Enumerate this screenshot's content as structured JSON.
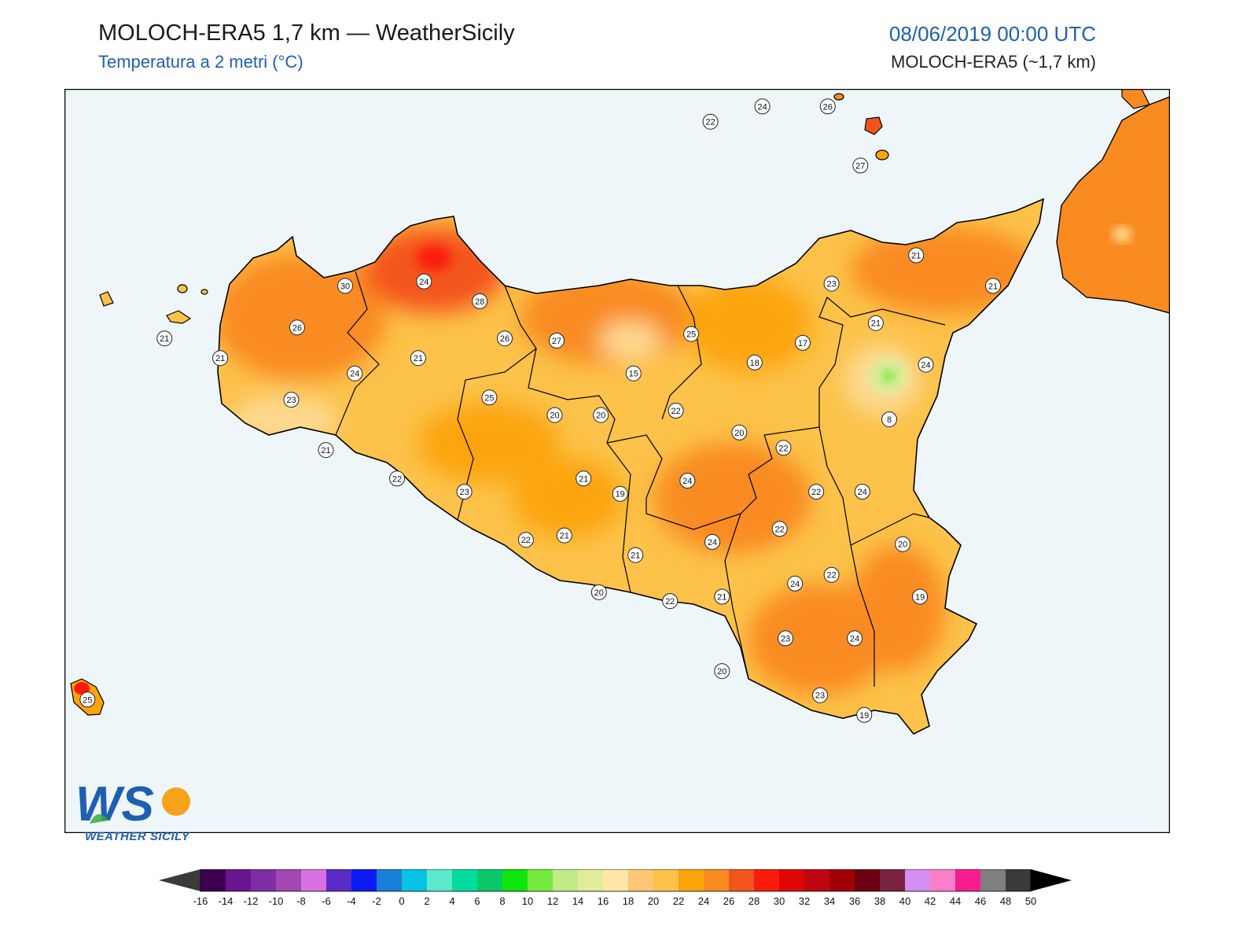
{
  "header": {
    "title": "MOLOCH-ERA5 1,7 km — WeatherSicily",
    "subtitle": "Temperatura a 2 metri (°C)",
    "datetime": "08/06/2019 00:00 UTC",
    "model": "MOLOCH-ERA5 (~1,7 km)"
  },
  "logo": {
    "letters": "WS",
    "text": "WEATHER SICILY"
  },
  "colors": {
    "sea": "#eef6fa",
    "land_base": "#fcc24a",
    "land_warm": "#f98b20",
    "land_hot": "#f4541c",
    "land_cool": "#fdd992",
    "coast": "#000000"
  },
  "colorbar": {
    "ticks": [
      "-16",
      "-14",
      "-12",
      "-10",
      "-8",
      "-6",
      "-4",
      "-2",
      "0",
      "2",
      "4",
      "6",
      "8",
      "10",
      "12",
      "14",
      "16",
      "18",
      "20",
      "22",
      "24",
      "26",
      "28",
      "30",
      "32",
      "34",
      "36",
      "38",
      "40",
      "42",
      "44",
      "46",
      "48",
      "50"
    ],
    "colors": [
      "#3d0050",
      "#6b1491",
      "#7e2fa3",
      "#a148b3",
      "#d970e2",
      "#5a2ac4",
      "#0b1cf5",
      "#1b7fd9",
      "#06c2e4",
      "#5ce8cd",
      "#04dc9e",
      "#0ac86a",
      "#0ee60a",
      "#76ea3c",
      "#bfec86",
      "#dfec9a",
      "#fde6a8",
      "#fdc773",
      "#fcc24a",
      "#fca40c",
      "#f98b20",
      "#f4541c",
      "#fb1b0a",
      "#e10606",
      "#c00612",
      "#a10006",
      "#6c0012",
      "#7a2340",
      "#d48ef2",
      "#fb7fc8",
      "#f71d91",
      "#7f7f7f",
      "#3a3a3a"
    ],
    "under_color": "#3a3a3a",
    "over_color": "#000000"
  },
  "stations": [
    {
      "label": "22",
      "lon": 14.06,
      "lat": 38.8
    },
    {
      "label": "24",
      "lon": 14.33,
      "lat": 38.87
    },
    {
      "label": "26",
      "lon": 14.67,
      "lat": 38.87
    },
    {
      "label": "27",
      "lon": 14.84,
      "lat": 38.6
    },
    {
      "label": "21",
      "lon": 15.13,
      "lat": 38.19
    },
    {
      "label": "23",
      "lon": 14.69,
      "lat": 38.06
    },
    {
      "label": "21",
      "lon": 15.53,
      "lat": 38.05
    },
    {
      "label": "30",
      "lon": 12.16,
      "lat": 38.05
    },
    {
      "label": "24",
      "lon": 12.57,
      "lat": 38.07
    },
    {
      "label": "28",
      "lon": 12.86,
      "lat": 37.98
    },
    {
      "label": "26",
      "lon": 11.91,
      "lat": 37.86
    },
    {
      "label": "26",
      "lon": 12.99,
      "lat": 37.81
    },
    {
      "label": "27",
      "lon": 13.26,
      "lat": 37.8
    },
    {
      "label": "25",
      "lon": 13.96,
      "lat": 37.83
    },
    {
      "label": "17",
      "lon": 14.54,
      "lat": 37.79
    },
    {
      "label": "21",
      "lon": 14.92,
      "lat": 37.88
    },
    {
      "label": "21",
      "lon": 11.22,
      "lat": 37.81
    },
    {
      "label": "21",
      "lon": 11.51,
      "lat": 37.72
    },
    {
      "label": "21",
      "lon": 12.54,
      "lat": 37.72
    },
    {
      "label": "24",
      "lon": 12.21,
      "lat": 37.65
    },
    {
      "label": "15",
      "lon": 13.66,
      "lat": 37.65
    },
    {
      "label": "18",
      "lon": 14.29,
      "lat": 37.7
    },
    {
      "label": "24",
      "lon": 15.18,
      "lat": 37.69
    },
    {
      "label": "23",
      "lon": 11.88,
      "lat": 37.53
    },
    {
      "label": "25",
      "lon": 12.91,
      "lat": 37.54
    },
    {
      "label": "20",
      "lon": 13.25,
      "lat": 37.46
    },
    {
      "label": "20",
      "lon": 13.49,
      "lat": 37.46
    },
    {
      "label": "22",
      "lon": 13.88,
      "lat": 37.48
    },
    {
      "label": "8",
      "lon": 14.99,
      "lat": 37.44
    },
    {
      "label": "20",
      "lon": 14.21,
      "lat": 37.38
    },
    {
      "label": "22",
      "lon": 14.44,
      "lat": 37.31
    },
    {
      "label": "21",
      "lon": 12.06,
      "lat": 37.3
    },
    {
      "label": "22",
      "lon": 12.43,
      "lat": 37.17
    },
    {
      "label": "24",
      "lon": 13.94,
      "lat": 37.16
    },
    {
      "label": "21",
      "lon": 13.4,
      "lat": 37.17
    },
    {
      "label": "19",
      "lon": 13.59,
      "lat": 37.1
    },
    {
      "label": "23",
      "lon": 12.78,
      "lat": 37.11
    },
    {
      "label": "22",
      "lon": 14.61,
      "lat": 37.11
    },
    {
      "label": "24",
      "lon": 14.85,
      "lat": 37.11
    },
    {
      "label": "22",
      "lon": 14.42,
      "lat": 36.94
    },
    {
      "label": "21",
      "lon": 13.3,
      "lat": 36.91
    },
    {
      "label": "22",
      "lon": 13.1,
      "lat": 36.89
    },
    {
      "label": "24",
      "lon": 14.07,
      "lat": 36.88
    },
    {
      "label": "20",
      "lon": 15.06,
      "lat": 36.87
    },
    {
      "label": "21",
      "lon": 13.67,
      "lat": 36.82
    },
    {
      "label": "22",
      "lon": 14.69,
      "lat": 36.73
    },
    {
      "label": "24",
      "lon": 14.5,
      "lat": 36.69
    },
    {
      "label": "20",
      "lon": 13.48,
      "lat": 36.65
    },
    {
      "label": "22",
      "lon": 13.85,
      "lat": 36.61
    },
    {
      "label": "21",
      "lon": 14.12,
      "lat": 36.63
    },
    {
      "label": "19",
      "lon": 15.15,
      "lat": 36.63
    },
    {
      "label": "23",
      "lon": 14.45,
      "lat": 36.44
    },
    {
      "label": "24",
      "lon": 14.81,
      "lat": 36.44
    },
    {
      "label": "20",
      "lon": 14.12,
      "lat": 36.29
    },
    {
      "label": "25",
      "lon": 10.82,
      "lat": 36.16
    },
    {
      "label": "23",
      "lon": 14.63,
      "lat": 36.18
    },
    {
      "label": "19",
      "lon": 14.86,
      "lat": 36.09
    }
  ]
}
